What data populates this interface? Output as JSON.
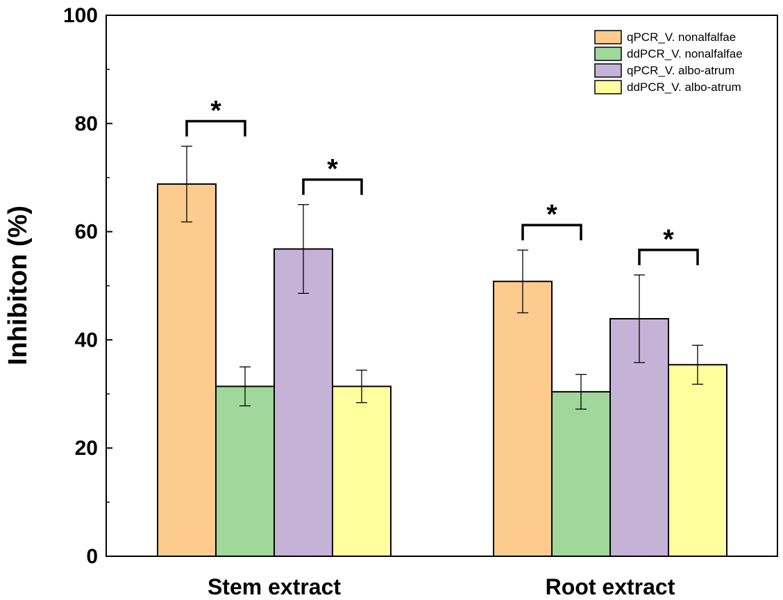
{
  "chart_data": {
    "type": "bar",
    "title": "",
    "xlabel": "",
    "ylabel": "Inhibiton (%)",
    "ylim": [
      0,
      100
    ],
    "yticks": [
      "0",
      "20",
      "40",
      "60",
      "80",
      "100"
    ],
    "categories": [
      "Stem extract",
      "Root extract"
    ],
    "series": [
      {
        "name": "qPCR_V. nonalfalfae",
        "color": "#FDCB8E",
        "values": [
          68.8,
          50.8
        ],
        "errors": [
          7.0,
          5.8
        ]
      },
      {
        "name": "ddPCR_V. nonalfalfae",
        "color": "#9FD89A",
        "values": [
          31.4,
          30.4
        ],
        "errors": [
          3.6,
          3.2
        ]
      },
      {
        "name": "qPCR_V. albo-atrum",
        "color": "#C5B3D7",
        "values": [
          56.8,
          43.9
        ],
        "errors": [
          8.2,
          8.1
        ]
      },
      {
        "name": "ddPCR_V. albo-atrum",
        "color": "#FFFF9E",
        "values": [
          31.4,
          35.4
        ],
        "errors": [
          3.0,
          3.6
        ]
      }
    ],
    "significance": [
      {
        "category": 0,
        "from_series": 0,
        "to_series": 1,
        "label": "*"
      },
      {
        "category": 0,
        "from_series": 2,
        "to_series": 3,
        "label": "*"
      },
      {
        "category": 1,
        "from_series": 0,
        "to_series": 1,
        "label": "*"
      },
      {
        "category": 1,
        "from_series": 2,
        "to_series": 3,
        "label": "*"
      }
    ],
    "legend_position": "top-right",
    "grid": false
  }
}
